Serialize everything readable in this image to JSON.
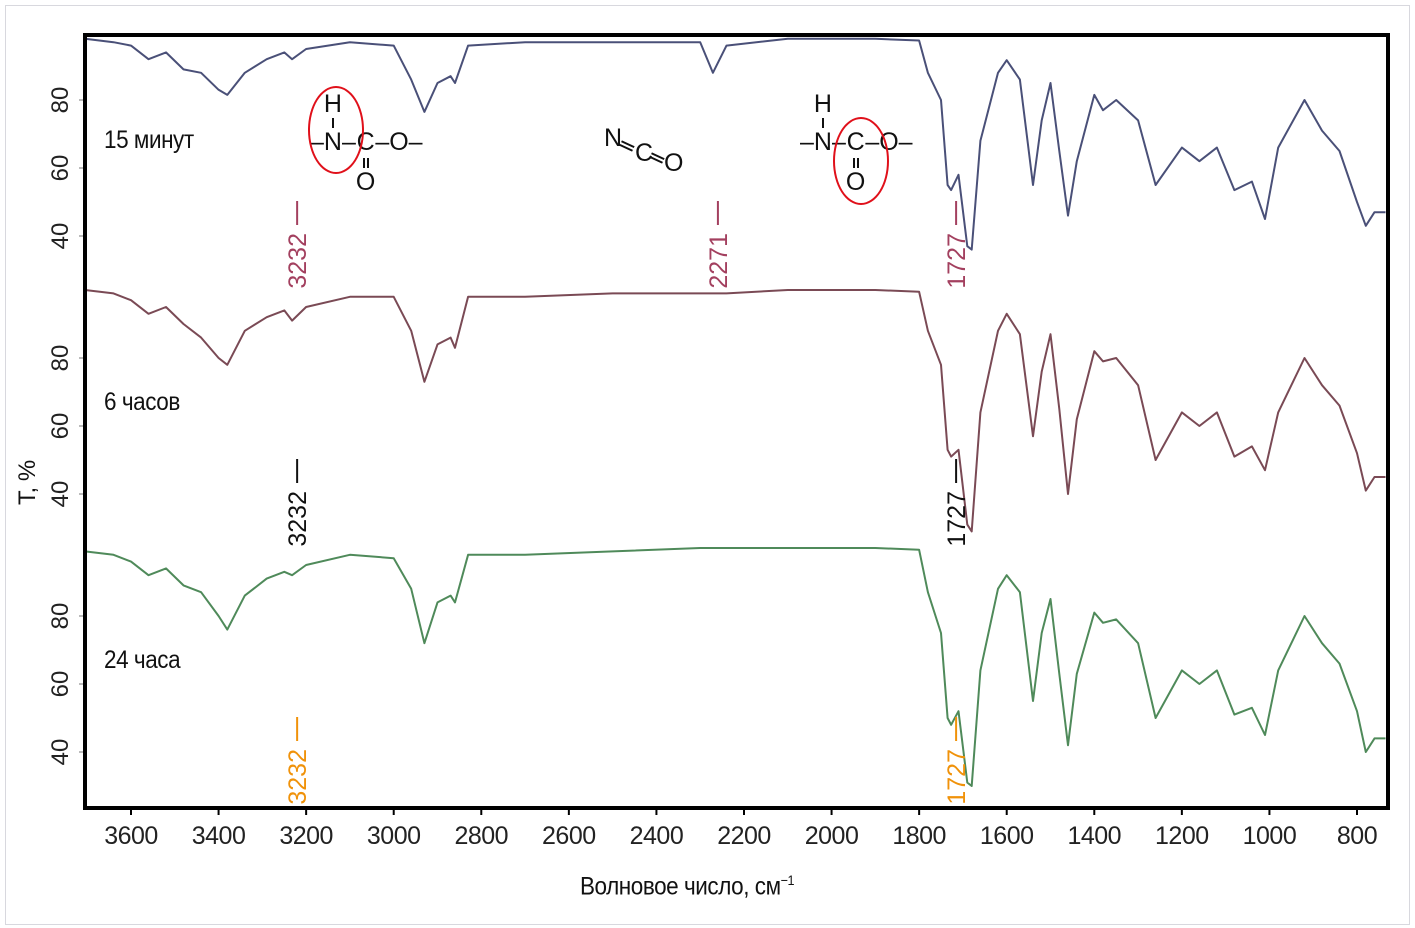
{
  "chart_data": {
    "type": "line",
    "title": "",
    "xlabel": "Волновое число, см",
    "xlabel_sup": "−1",
    "ylabel": "T, %",
    "xlim": [
      3705,
      729
    ],
    "x_ticks": [
      3600,
      3400,
      3200,
      3000,
      2800,
      2600,
      2400,
      2200,
      2000,
      1800,
      1600,
      1400,
      1200,
      1000,
      800
    ],
    "y_ticks": [
      80,
      60,
      40
    ],
    "grid": false,
    "x": [
      3705,
      3640,
      3600,
      3560,
      3520,
      3480,
      3440,
      3400,
      3380,
      3340,
      3290,
      3250,
      3232,
      3200,
      3100,
      3000,
      2960,
      2930,
      2900,
      2870,
      2860,
      2830,
      2700,
      2500,
      2300,
      2271,
      2240,
      2100,
      1900,
      1800,
      1780,
      1750,
      1735,
      1727,
      1710,
      1690,
      1680,
      1660,
      1620,
      1600,
      1570,
      1540,
      1520,
      1500,
      1480,
      1460,
      1440,
      1400,
      1380,
      1350,
      1300,
      1260,
      1200,
      1160,
      1120,
      1080,
      1040,
      1010,
      980,
      920,
      880,
      840,
      800,
      780,
      760,
      735
    ],
    "series": [
      {
        "name": "15 минут",
        "color": "#4a5078",
        "values": [
          98,
          97,
          96,
          92,
          94,
          89,
          88,
          83,
          81.5,
          88,
          92,
          94,
          92,
          95,
          97,
          96,
          86,
          76.5,
          85,
          87,
          85,
          96,
          97,
          97,
          97,
          88,
          96,
          98,
          98,
          97.5,
          88,
          80,
          55,
          53.5,
          58,
          37,
          36,
          68,
          88,
          91.7,
          86,
          55,
          74,
          85,
          65,
          46,
          62,
          81.5,
          77,
          80,
          74,
          55,
          66,
          62,
          66,
          53.5,
          56,
          45,
          66,
          80,
          71,
          65,
          50,
          43,
          47,
          47
        ],
        "annotations": [
          {
            "label": "3232",
            "x": 3232,
            "color": "#a3405f"
          },
          {
            "label": "2271",
            "x": 2271,
            "color": "#a3405f"
          },
          {
            "label": "1727",
            "x": 1727,
            "color": "#a3405f"
          }
        ]
      },
      {
        "name": "6 часов",
        "color": "#7a4a55",
        "values": [
          100,
          99,
          97,
          93,
          95,
          90,
          86,
          80,
          78,
          88,
          92,
          94,
          91,
          95,
          98,
          98,
          88,
          73,
          84,
          86,
          83,
          98,
          98,
          99,
          99,
          99,
          99,
          100,
          100,
          99.5,
          88,
          78,
          53,
          51,
          53,
          31,
          29,
          64,
          88,
          93,
          87,
          57,
          76,
          87,
          65,
          40,
          62,
          82,
          79,
          80,
          72,
          50,
          64,
          60,
          64,
          51,
          54,
          47,
          64,
          80,
          72,
          66,
          52,
          41,
          45,
          45
        ],
        "annotations": [
          {
            "label": "3232",
            "x": 3232,
            "color": "#111111"
          },
          {
            "label": "1727",
            "x": 1727,
            "color": "#111111"
          }
        ]
      },
      {
        "name": "24 часа",
        "color": "#4f8a5a",
        "values": [
          99,
          98,
          96,
          92,
          94,
          89,
          87,
          80,
          76,
          86,
          91,
          93,
          92,
          95,
          98,
          97,
          88,
          72,
          84,
          86,
          84,
          98,
          98,
          99,
          100,
          100,
          100,
          100,
          100,
          99.5,
          87,
          75,
          50,
          48,
          52,
          31,
          30,
          64,
          88,
          92,
          87,
          55,
          75,
          85,
          63,
          42,
          63,
          81,
          78,
          79,
          72,
          50,
          64,
          60,
          64,
          51,
          53,
          45,
          64,
          80,
          72,
          66,
          52,
          40,
          44,
          44
        ],
        "annotations": [
          {
            "label": "3232",
            "x": 3232,
            "color": "#f0920a"
          },
          {
            "label": "1727",
            "x": 1727,
            "color": "#f0920a"
          }
        ]
      }
    ],
    "structures": {
      "urethane_nh": {
        "h": "H",
        "n": "–N–",
        "c": "C",
        "o_chain": "–O–",
        "o_double": "O"
      },
      "isocyanate": {
        "n": "N",
        "c": "C",
        "o": "O"
      },
      "urethane_co": {
        "h": "H",
        "n": "–N–",
        "c": "C",
        "o_chain": "–O–",
        "o_double": "O"
      }
    },
    "highlight_color": "#e0101a"
  }
}
